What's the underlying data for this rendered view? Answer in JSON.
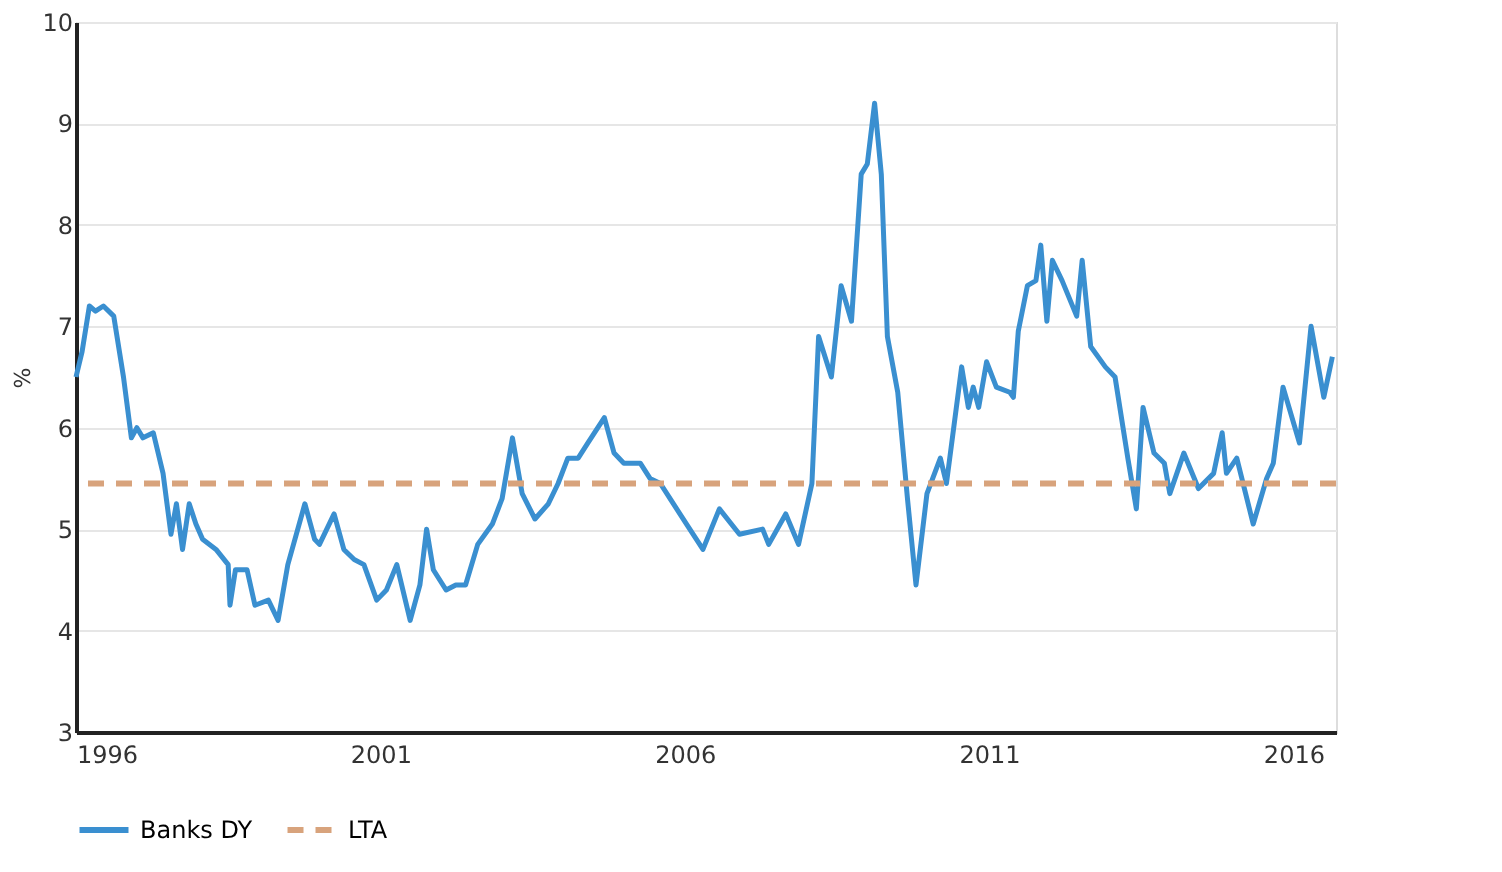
{
  "chart_data": {
    "type": "line",
    "ylabel": "%",
    "xlim": [
      1996,
      2016.7
    ],
    "xticks": [
      1996,
      2001,
      2006,
      2011,
      2016
    ],
    "ylim": [
      3,
      10
    ],
    "yticks": [
      3,
      4,
      5,
      6,
      7,
      8,
      9,
      10
    ],
    "grid": "y",
    "legend": "bottom",
    "line_style": "solid",
    "marker": "none",
    "series": [
      {
        "name": "Banks DY",
        "color": "#3a8fd0",
        "x": [
          1996.0,
          1996.1,
          1996.22,
          1996.32,
          1996.45,
          1996.62,
          1996.78,
          1996.91,
          1997.0,
          1997.1,
          1997.27,
          1997.43,
          1997.56,
          1997.65,
          1997.75,
          1997.86,
          1997.97,
          1998.08,
          1998.3,
          1998.5,
          1998.53,
          1998.62,
          1998.81,
          1998.94,
          1999.16,
          1999.32,
          1999.48,
          1999.76,
          1999.92,
          2000.0,
          2000.24,
          2000.4,
          2000.57,
          2000.73,
          2000.94,
          2001.1,
          2001.27,
          2001.49,
          2001.65,
          2001.76,
          2001.87,
          2002.08,
          2002.24,
          2002.4,
          2002.6,
          2002.84,
          2003.0,
          2003.17,
          2003.33,
          2003.54,
          2003.76,
          2003.92,
          2004.08,
          2004.25,
          2004.41,
          2004.68,
          2004.84,
          2005.0,
          2005.27,
          2005.43,
          2005.6,
          2005.76,
          2006.03,
          2006.3,
          2006.57,
          2006.9,
          2007.28,
          2007.38,
          2007.66,
          2007.87,
          2008.09,
          2008.2,
          2008.41,
          2008.57,
          2008.74,
          2008.9,
          2009.0,
          2009.12,
          2009.23,
          2009.33,
          2009.5,
          2009.66,
          2009.8,
          2009.98,
          2010.2,
          2010.3,
          2010.55,
          2010.66,
          2010.74,
          2010.83,
          2010.96,
          2011.12,
          2011.34,
          2011.4,
          2011.48,
          2011.63,
          2011.77,
          2011.85,
          2011.95,
          2012.04,
          2012.2,
          2012.44,
          2012.53,
          2012.67,
          2012.91,
          2013.07,
          2013.28,
          2013.42,
          2013.53,
          2013.71,
          2013.88,
          2013.97,
          2014.2,
          2014.44,
          2014.69,
          2014.83,
          2014.9,
          2015.07,
          2015.34,
          2015.56,
          2015.67,
          2015.83,
          2016.1,
          2016.29,
          2016.5,
          2016.64
        ],
        "values": [
          6.5,
          6.75,
          7.2,
          7.15,
          7.2,
          7.1,
          6.5,
          5.9,
          6.0,
          5.9,
          5.95,
          5.55,
          4.95,
          5.25,
          4.8,
          5.25,
          5.05,
          4.9,
          4.8,
          4.65,
          4.25,
          4.6,
          4.6,
          4.25,
          4.3,
          4.1,
          4.65,
          5.25,
          4.9,
          4.85,
          5.15,
          4.8,
          4.7,
          4.65,
          4.3,
          4.4,
          4.65,
          4.1,
          4.45,
          5.0,
          4.6,
          4.4,
          4.45,
          4.45,
          4.85,
          5.05,
          5.3,
          5.9,
          5.35,
          5.1,
          5.25,
          5.45,
          5.7,
          5.7,
          5.85,
          6.1,
          5.75,
          5.65,
          5.65,
          5.5,
          5.45,
          5.3,
          5.05,
          4.8,
          5.2,
          4.95,
          5.0,
          4.85,
          5.15,
          4.85,
          5.45,
          6.9,
          6.5,
          7.4,
          7.05,
          8.5,
          8.6,
          9.2,
          8.5,
          6.9,
          6.35,
          5.3,
          4.45,
          5.35,
          5.7,
          5.45,
          6.6,
          6.2,
          6.4,
          6.2,
          6.65,
          6.4,
          6.35,
          6.3,
          6.95,
          7.4,
          7.45,
          7.8,
          7.05,
          7.65,
          7.45,
          7.1,
          7.65,
          6.8,
          6.6,
          6.5,
          5.7,
          5.2,
          6.2,
          5.75,
          5.65,
          5.35,
          5.75,
          5.4,
          5.55,
          5.95,
          5.55,
          5.7,
          5.05,
          5.5,
          5.65,
          6.4,
          5.85,
          7.0,
          6.3,
          6.7
        ]
      }
    ],
    "ref_lines": [
      {
        "axis": "y",
        "value": 5.45,
        "label": "LTA",
        "color": "#d8a37c",
        "line_style": "dashed"
      }
    ]
  }
}
